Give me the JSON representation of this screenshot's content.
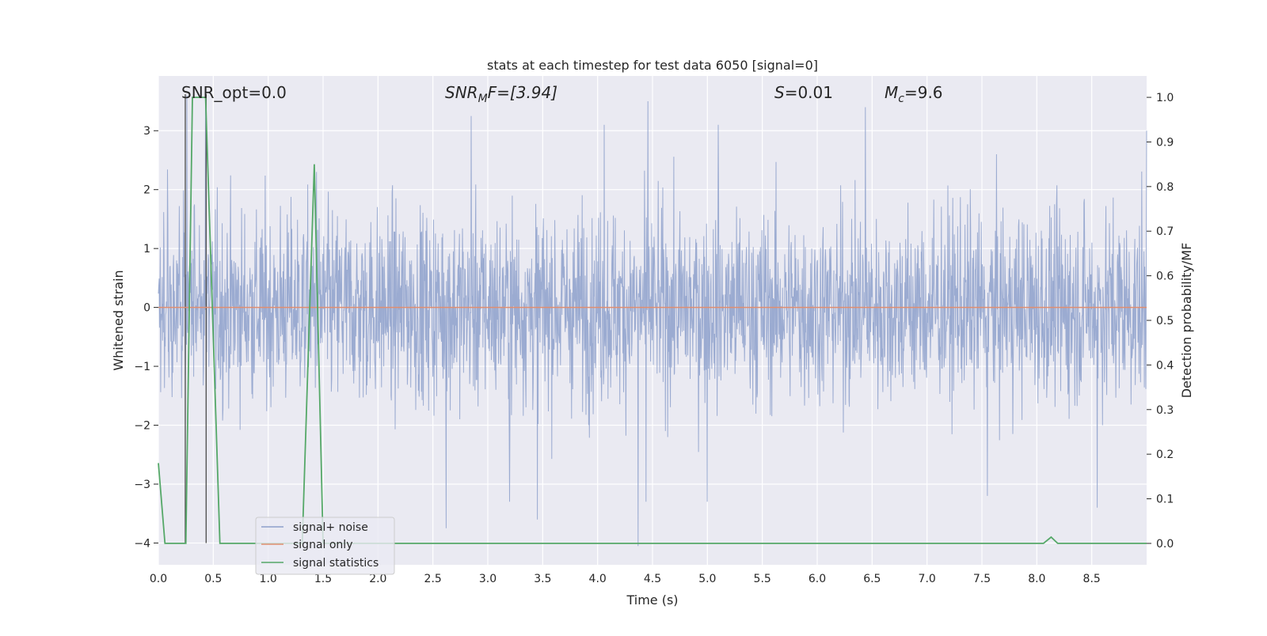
{
  "chart_data": {
    "type": "line",
    "title": "stats at each timestep for test data 6050 [signal=0]",
    "xlabel": "Time (s)",
    "ylabel": "Whitened strain",
    "ylabel_right": "Detection probability/MF",
    "xlim": [
      0.0,
      9.0
    ],
    "ylim": [
      -4.37,
      3.93
    ],
    "ylim_right": [
      -0.048,
      1.048
    ],
    "x_ticks": [
      "0.0",
      "0.5",
      "1.0",
      "1.5",
      "2.0",
      "2.5",
      "3.0",
      "3.5",
      "4.0",
      "4.5",
      "5.0",
      "5.5",
      "6.0",
      "6.5",
      "7.0",
      "7.5",
      "8.0",
      "8.5"
    ],
    "y_ticks": [
      "−4",
      "−3",
      "−2",
      "−1",
      "0",
      "1",
      "2",
      "3"
    ],
    "y_ticks_right": [
      "0.0",
      "0.1",
      "0.2",
      "0.3",
      "0.4",
      "0.5",
      "0.6",
      "0.7",
      "0.8",
      "0.9",
      "1.0"
    ],
    "grid": true,
    "legend_position": "lower-left",
    "annotations": {
      "snr_opt": "SNR_opt=0.0",
      "snr_mf_main": "SNR",
      "snr_mf_sub": "M",
      "snr_mf_rest": "F=[3.94]",
      "s_main": "S",
      "s_rest": "=0.01",
      "mc_main": "M",
      "mc_sub": "c",
      "mc_rest": "=9.6"
    },
    "series": [
      {
        "name": "signal+ noise",
        "axis": "left",
        "color": "#8da0cb",
        "style": "dense noise, amplitude mostly within about -2.5 to 2.5, extremes near 3.5 and -4",
        "notable_peaks": [
          [
            0.26,
            3.6
          ],
          [
            0.43,
            3.6
          ],
          [
            1.44,
            2.3
          ],
          [
            2.85,
            3.25
          ],
          [
            4.06,
            3.1
          ],
          [
            4.46,
            3.5
          ],
          [
            5.1,
            3.1
          ],
          [
            6.44,
            3.4
          ],
          [
            9.0,
            3.0
          ]
        ],
        "notable_troughs": [
          [
            2.62,
            -3.75
          ],
          [
            3.2,
            -3.3
          ],
          [
            3.45,
            -3.6
          ],
          [
            4.37,
            -4.05
          ],
          [
            4.44,
            -3.3
          ],
          [
            5.0,
            -3.3
          ],
          [
            7.55,
            -3.2
          ],
          [
            8.55,
            -3.4
          ]
        ]
      },
      {
        "name": "signal only",
        "axis": "left",
        "color": "#e08e70",
        "x": [
          0.0,
          9.0
        ],
        "y": [
          0.0,
          0.0
        ]
      },
      {
        "name": "signal statistics",
        "axis": "right",
        "color": "#55a868",
        "x": [
          0.0,
          0.06,
          0.25,
          0.31,
          0.43,
          0.56,
          0.62,
          1.31,
          1.42,
          1.5,
          1.56,
          3.19,
          3.23,
          8.06,
          8.13,
          8.19,
          9.0
        ],
        "y": [
          0.18,
          0.0,
          0.0,
          1.0,
          1.0,
          0.0,
          0.0,
          0.0,
          0.85,
          0.0,
          0.0,
          0.0,
          0.0,
          0.0,
          0.014,
          0.0,
          0.0
        ]
      },
      {
        "name": "",
        "axis": "left",
        "color": "#555555",
        "style": "vertical marker lines",
        "x_positions": [
          0.245,
          0.435
        ]
      }
    ]
  },
  "legend": {
    "items": [
      {
        "label": "signal+ noise",
        "color": "#8da0cb"
      },
      {
        "label": "signal only",
        "color": "#e08e70"
      },
      {
        "label": "signal statistics",
        "color": "#55a868"
      }
    ]
  },
  "colors": {
    "plot_background": "#eaeaf2",
    "grid": "#ffffff",
    "text": "#262626"
  }
}
